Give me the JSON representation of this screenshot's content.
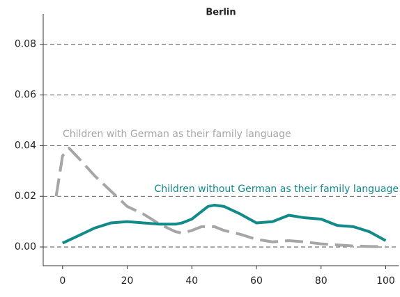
{
  "chart_data": {
    "type": "line",
    "title": "Berlin",
    "x": [
      -2,
      0,
      2,
      5,
      10,
      15,
      20,
      25,
      30,
      35,
      37,
      40,
      43,
      45,
      47,
      50,
      55,
      60,
      65,
      70,
      75,
      80,
      85,
      90,
      95,
      100
    ],
    "series": [
      {
        "name": "Children with German as their family language",
        "color": "#a6a6a6",
        "line_style": "dashed",
        "values": [
          0.02,
          0.036,
          0.039,
          0.035,
          0.028,
          0.022,
          0.016,
          0.013,
          0.009,
          0.006,
          0.0055,
          0.0065,
          0.008,
          0.008,
          0.008,
          0.0065,
          0.005,
          0.003,
          0.002,
          0.0025,
          0.002,
          0.0012,
          0.0008,
          0.0004,
          0.0002,
          0.0001
        ]
      },
      {
        "name": "Children without German as their family language",
        "color": "#138a8a",
        "line_style": "solid",
        "values": [
          null,
          0.0015,
          0.0027,
          0.0045,
          0.0075,
          0.0095,
          0.01,
          0.0095,
          0.009,
          0.009,
          0.0095,
          0.011,
          0.014,
          0.016,
          0.0165,
          0.016,
          0.013,
          0.0095,
          0.01,
          0.0125,
          0.0115,
          0.011,
          0.0085,
          0.008,
          0.006,
          0.0025
        ]
      }
    ],
    "xlim": [
      -6,
      104
    ],
    "ylim": [
      -0.0074,
      0.092
    ],
    "xticks": [
      0,
      20,
      40,
      60,
      80,
      100
    ],
    "yticks": [
      {
        "value": 0,
        "label": "0.00"
      },
      {
        "value": 0.02,
        "label": "0.02"
      },
      {
        "value": 0.04,
        "label": "0.04"
      },
      {
        "value": 0.06,
        "label": "0.06"
      },
      {
        "value": 0.08,
        "label": "0.08"
      }
    ],
    "grid": true
  }
}
